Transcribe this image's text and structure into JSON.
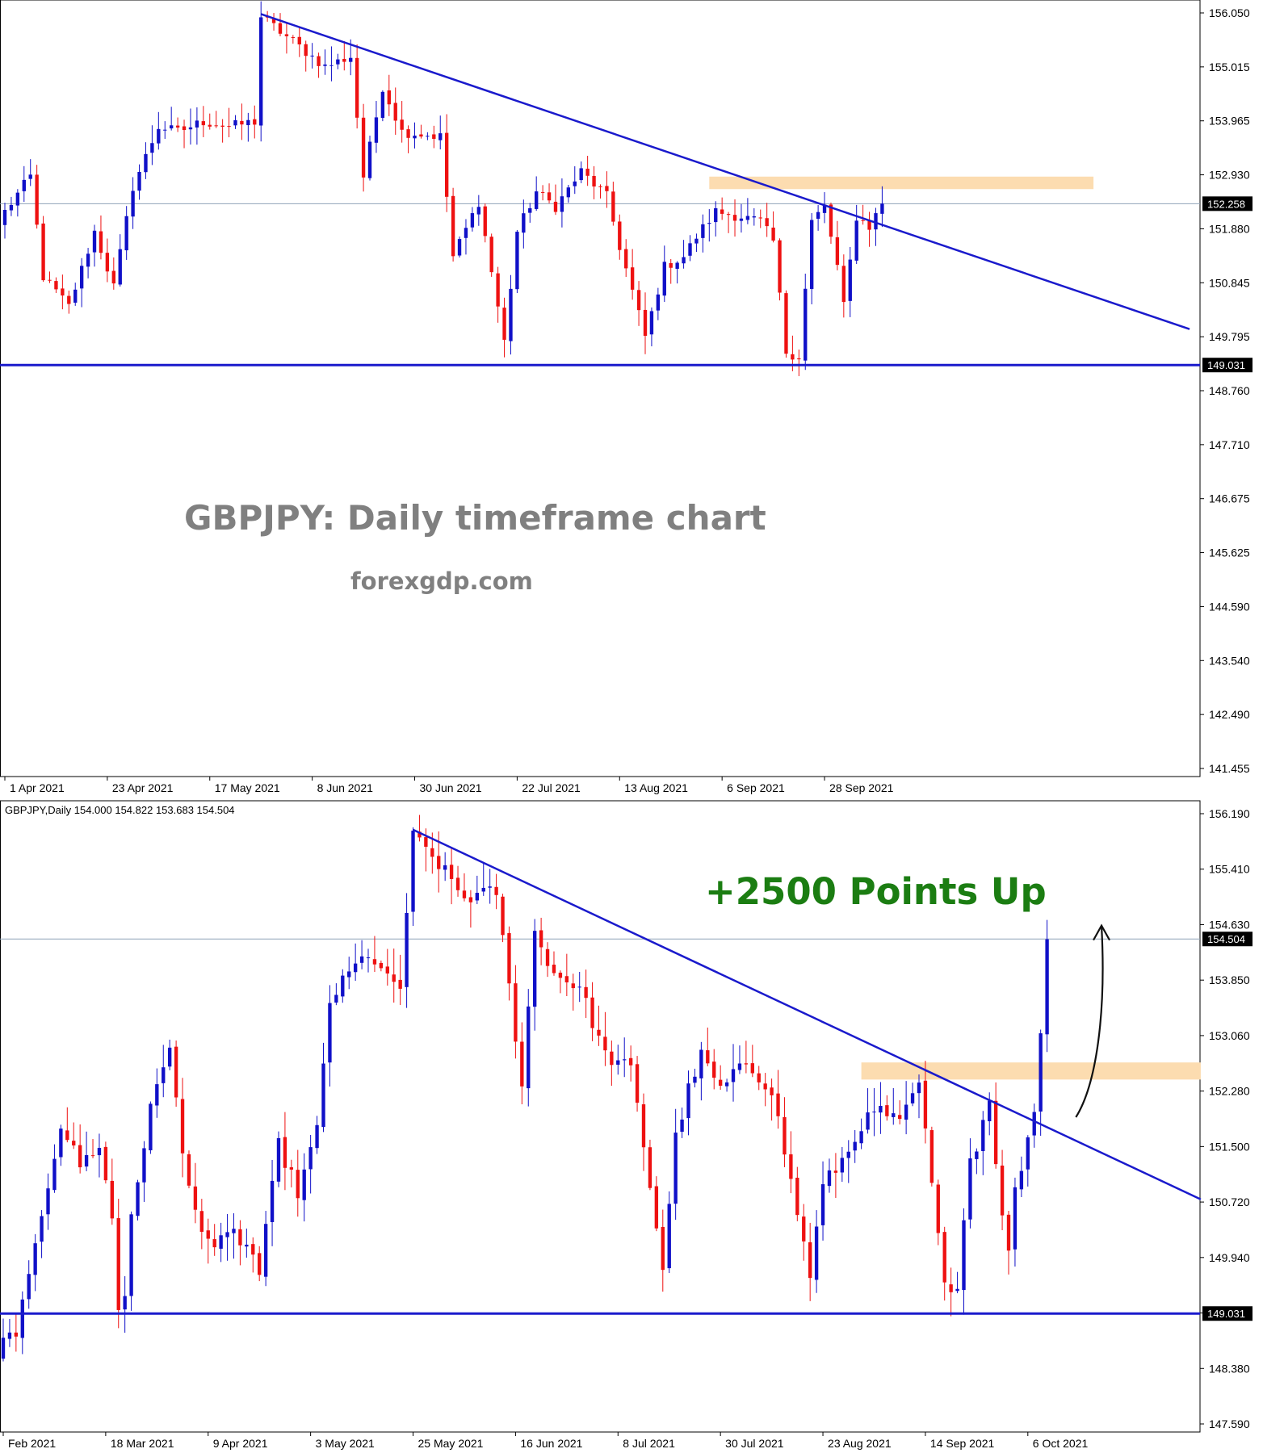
{
  "colors": {
    "bull": "#1010c8",
    "bear": "#ee1111",
    "trendline": "#1a1acc",
    "support": "#1a1acc",
    "zone": "#fcdcb0",
    "annotation": "#1b7d12",
    "watermark": "#808080",
    "axis_tag_bg": "#000000",
    "axis_tag_text": "#ffffff"
  },
  "chart_data": [
    {
      "type": "candlestick",
      "symbol": "GBPJPY",
      "timeframe": "Daily",
      "watermark_title": "GBPJPY: Daily timeframe chart",
      "watermark_site": "forexgdp.com",
      "current_price_tag": "152.258",
      "support_tag": "149.031",
      "current_price": 152.258,
      "support_level": 149.031,
      "ylim": [
        140.8,
        156.3
      ],
      "y_ticks": [
        "156.050",
        "155.015",
        "153.965",
        "152.930",
        "151.880",
        "150.845",
        "149.795",
        "148.760",
        "147.710",
        "146.675",
        "145.625",
        "144.590",
        "143.540",
        "142.490",
        "141.455"
      ],
      "x_labels": [
        "1 Apr 2021",
        "23 Apr 2021",
        "17 May 2021",
        "8 Jun 2021",
        "30 Jun 2021",
        "22 Jul 2021",
        "13 Aug 2021",
        "6 Sep 2021",
        "28 Sep 2021"
      ],
      "x_label_bars": [
        0,
        16,
        32,
        48,
        64,
        80,
        96,
        112,
        128
      ],
      "n_bars": 138,
      "trendline": {
        "from": {
          "bar": 40,
          "price": 156.05
        },
        "to": {
          "bar": 185,
          "price": 149.75
        }
      },
      "resistance_zone": {
        "from_bar": 110,
        "to_bar": 170,
        "low": 152.55,
        "high": 152.8
      },
      "path": [
        [
          0,
          152.1
        ],
        [
          4,
          152.8
        ],
        [
          6,
          150.8
        ],
        [
          10,
          150.2
        ],
        [
          14,
          151.7
        ],
        [
          17,
          150.6
        ],
        [
          20,
          152.6
        ],
        [
          24,
          153.8
        ],
        [
          27,
          153.7
        ],
        [
          31,
          153.9
        ],
        [
          35,
          153.8
        ],
        [
          39,
          153.9
        ],
        [
          40,
          156.0
        ],
        [
          44,
          155.6
        ],
        [
          50,
          155.0
        ],
        [
          54,
          155.2
        ],
        [
          56,
          152.8
        ],
        [
          59,
          154.6
        ],
        [
          62,
          153.7
        ],
        [
          68,
          153.6
        ],
        [
          70,
          151.2
        ],
        [
          74,
          152.3
        ],
        [
          76,
          150.9
        ],
        [
          78,
          149.5
        ],
        [
          80,
          151.7
        ],
        [
          83,
          152.5
        ],
        [
          86,
          152.2
        ],
        [
          90,
          152.9
        ],
        [
          94,
          152.4
        ],
        [
          96,
          151.4
        ],
        [
          100,
          149.6
        ],
        [
          103,
          151.0
        ],
        [
          106,
          151.2
        ],
        [
          108,
          151.6
        ],
        [
          111,
          152.1
        ],
        [
          115,
          152.0
        ],
        [
          118,
          151.9
        ],
        [
          120,
          151.5
        ],
        [
          122,
          149.3
        ],
        [
          124,
          149.2
        ],
        [
          126,
          151.9
        ],
        [
          128,
          152.2
        ],
        [
          130,
          151.0
        ],
        [
          131,
          150.2
        ],
        [
          133,
          152.0
        ],
        [
          135,
          151.8
        ],
        [
          137,
          152.26
        ]
      ]
    },
    {
      "type": "candlestick",
      "header": "GBPJPY,Daily  154.000 154.822 153.683 154.504",
      "annotation": "+2500 Points Up",
      "current_price_tag": "154.504",
      "support_tag": "149.031",
      "current_price": 154.504,
      "support_level": 149.031,
      "ylim": [
        147.3,
        156.5
      ],
      "y_ticks": [
        "156.190",
        "155.410",
        "154.630",
        "153.850",
        "153.060",
        "152.280",
        "151.500",
        "150.720",
        "149.940",
        "149.160",
        "148.380",
        "147.590"
      ],
      "x_labels": [
        "Feb 2021",
        "18 Mar 2021",
        "9 Apr 2021",
        "3 May 2021",
        "25 May 2021",
        "16 Jun 2021",
        "8 Jul 2021",
        "30 Jul 2021",
        "23 Aug 2021",
        "14 Sep 2021",
        "6 Oct 2021"
      ],
      "x_label_bars": [
        0,
        16,
        32,
        48,
        64,
        80,
        96,
        112,
        128,
        144,
        160
      ],
      "n_bars": 164,
      "trendline": {
        "from": {
          "bar": 64,
          "price": 156.1
        },
        "to": {
          "bar": 187,
          "price": 150.7
        }
      },
      "resistance_zone": {
        "from_bar": 134,
        "to_bar": 187,
        "low": 152.45,
        "high": 152.7
      },
      "arrow": {
        "from": {
          "bar": 167,
          "price": 151.9
        },
        "to": {
          "bar": 171,
          "price": 154.7
        }
      },
      "path": [
        [
          0,
          148.6
        ],
        [
          2,
          148.8
        ],
        [
          4,
          149.5
        ],
        [
          6,
          150.5
        ],
        [
          9,
          151.8
        ],
        [
          12,
          151.2
        ],
        [
          15,
          151.5
        ],
        [
          17,
          150.4
        ],
        [
          18,
          149.1
        ],
        [
          19,
          149.3
        ],
        [
          20,
          150.5
        ],
        [
          23,
          152.0
        ],
        [
          26,
          153.0
        ],
        [
          28,
          151.3
        ],
        [
          30,
          150.5
        ],
        [
          33,
          150.0
        ],
        [
          36,
          150.2
        ],
        [
          39,
          149.9
        ],
        [
          40,
          149.6
        ],
        [
          43,
          151.5
        ],
        [
          46,
          150.8
        ],
        [
          49,
          151.7
        ],
        [
          51,
          153.6
        ],
        [
          54,
          154.0
        ],
        [
          57,
          154.3
        ],
        [
          60,
          153.9
        ],
        [
          62,
          153.8
        ],
        [
          64,
          156.0
        ],
        [
          68,
          155.6
        ],
        [
          72,
          155.1
        ],
        [
          77,
          155.2
        ],
        [
          79,
          153.8
        ],
        [
          81,
          152.4
        ],
        [
          83,
          154.6
        ],
        [
          86,
          154.0
        ],
        [
          90,
          153.8
        ],
        [
          94,
          152.8
        ],
        [
          98,
          152.6
        ],
        [
          100,
          151.5
        ],
        [
          103,
          149.7
        ],
        [
          105,
          151.6
        ],
        [
          107,
          152.3
        ],
        [
          109,
          152.8
        ],
        [
          112,
          152.3
        ],
        [
          116,
          152.7
        ],
        [
          120,
          152.3
        ],
        [
          122,
          151.4
        ],
        [
          124,
          150.5
        ],
        [
          126,
          149.6
        ],
        [
          128,
          150.9
        ],
        [
          132,
          151.4
        ],
        [
          134,
          151.8
        ],
        [
          137,
          152.0
        ],
        [
          140,
          151.8
        ],
        [
          143,
          152.4
        ],
        [
          145,
          150.9
        ],
        [
          147,
          149.4
        ],
        [
          149,
          149.5
        ],
        [
          151,
          151.3
        ],
        [
          152,
          151.5
        ],
        [
          154,
          152.2
        ],
        [
          156,
          150.4
        ],
        [
          157,
          150.0
        ],
        [
          158,
          150.8
        ],
        [
          160,
          151.6
        ],
        [
          161,
          152.0
        ],
        [
          162,
          153.2
        ],
        [
          163,
          154.5
        ]
      ]
    }
  ]
}
